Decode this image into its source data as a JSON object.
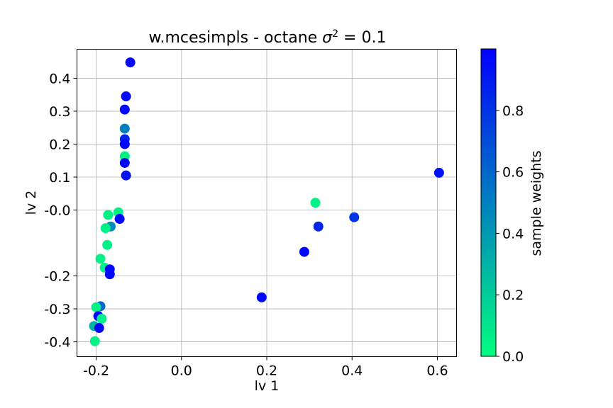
{
  "chart_data": {
    "type": "scatter",
    "title": "w.mcesimpls - octane σ² = 0.1",
    "title_main": "w.mcesimpls - octane ",
    "title_math": "σ",
    "title_sup": "2",
    "title_tail": " = 0.1",
    "xlabel": "lv 1",
    "ylabel": "lv 2",
    "xlim": [
      -0.245,
      0.645
    ],
    "ylim": [
      -0.445,
      0.488
    ],
    "xticks": [
      {
        "value": -0.2,
        "label": "-0.2"
      },
      {
        "value": 0.0,
        "label": "0.0"
      },
      {
        "value": 0.2,
        "label": "0.2"
      },
      {
        "value": 0.4,
        "label": "0.4"
      },
      {
        "value": 0.6,
        "label": "0.6"
      }
    ],
    "yticks": [
      {
        "value": 0.4,
        "label": "0.4"
      },
      {
        "value": 0.3,
        "label": "0.3"
      },
      {
        "value": 0.2,
        "label": "0.2"
      },
      {
        "value": 0.1,
        "label": "0.1"
      },
      {
        "value": 0.0,
        "label": "-0.0"
      },
      {
        "value": -0.2,
        "label": "-0.2"
      },
      {
        "value": -0.3,
        "label": "-0.3"
      },
      {
        "value": -0.4,
        "label": "-0.4"
      }
    ],
    "grid": true,
    "colorbar": {
      "label": "sample weights",
      "range": [
        0.0,
        1.0
      ],
      "colormap": "winter",
      "color_low": "#00ff80",
      "color_high": "#0000ff",
      "ticks": [
        {
          "value": 0.0,
          "label": "0.0"
        },
        {
          "value": 0.2,
          "label": "0.2"
        },
        {
          "value": 0.4,
          "label": "0.4"
        },
        {
          "value": 0.6,
          "label": "0.6"
        },
        {
          "value": 0.8,
          "label": "0.8"
        }
      ]
    },
    "points": [
      {
        "x": -0.12,
        "y": 0.448,
        "w": 0.97
      },
      {
        "x": -0.13,
        "y": 0.345,
        "w": 0.97
      },
      {
        "x": -0.133,
        "y": 0.305,
        "w": 0.96
      },
      {
        "x": -0.133,
        "y": 0.247,
        "w": 0.5
      },
      {
        "x": -0.133,
        "y": 0.215,
        "w": 0.85
      },
      {
        "x": -0.133,
        "y": 0.2,
        "w": 0.97
      },
      {
        "x": -0.133,
        "y": 0.163,
        "w": 0.05
      },
      {
        "x": -0.133,
        "y": 0.143,
        "w": 0.97
      },
      {
        "x": -0.13,
        "y": 0.105,
        "w": 0.94
      },
      {
        "x": -0.148,
        "y": -0.007,
        "w": 0.05
      },
      {
        "x": -0.172,
        "y": -0.015,
        "w": 0.05
      },
      {
        "x": -0.145,
        "y": -0.027,
        "w": 0.97
      },
      {
        "x": -0.166,
        "y": -0.05,
        "w": 0.45
      },
      {
        "x": -0.178,
        "y": -0.055,
        "w": 0.05
      },
      {
        "x": -0.174,
        "y": -0.106,
        "w": 0.05
      },
      {
        "x": -0.19,
        "y": -0.148,
        "w": 0.05
      },
      {
        "x": -0.18,
        "y": -0.175,
        "w": 0.05
      },
      {
        "x": -0.168,
        "y": -0.18,
        "w": 0.97
      },
      {
        "x": -0.168,
        "y": -0.195,
        "w": 0.97
      },
      {
        "x": -0.19,
        "y": -0.292,
        "w": 0.6
      },
      {
        "x": -0.2,
        "y": -0.295,
        "w": 0.05
      },
      {
        "x": -0.195,
        "y": -0.322,
        "w": 0.97
      },
      {
        "x": -0.187,
        "y": -0.33,
        "w": 0.05
      },
      {
        "x": -0.205,
        "y": -0.352,
        "w": 0.3
      },
      {
        "x": -0.193,
        "y": -0.358,
        "w": 0.97
      },
      {
        "x": -0.203,
        "y": -0.398,
        "w": 0.05
      },
      {
        "x": 0.314,
        "y": 0.022,
        "w": 0.05
      },
      {
        "x": 0.321,
        "y": -0.05,
        "w": 0.85
      },
      {
        "x": 0.405,
        "y": -0.022,
        "w": 0.8
      },
      {
        "x": 0.288,
        "y": -0.127,
        "w": 0.97
      },
      {
        "x": 0.188,
        "y": -0.265,
        "w": 0.97
      },
      {
        "x": 0.604,
        "y": 0.113,
        "w": 0.93
      }
    ]
  }
}
